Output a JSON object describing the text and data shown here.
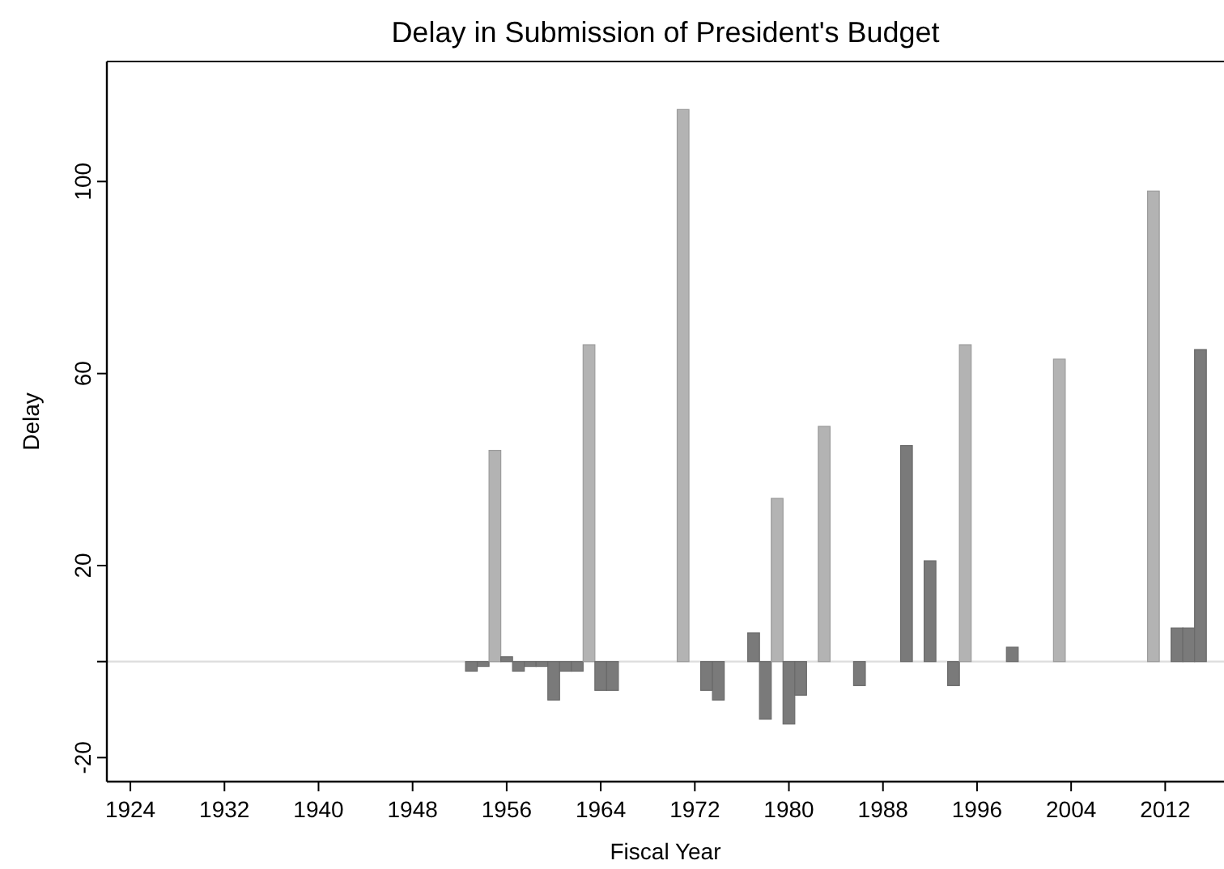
{
  "chart_data": {
    "type": "bar",
    "title": "Delay in Submission of President's Budget",
    "xlabel": "Fiscal Year",
    "ylabel": "Delay",
    "x": [
      1953,
      1954,
      1955,
      1956,
      1957,
      1958,
      1959,
      1960,
      1961,
      1962,
      1963,
      1964,
      1965,
      1971,
      1973,
      1974,
      1977,
      1978,
      1979,
      1980,
      1981,
      1983,
      1986,
      1990,
      1992,
      1994,
      1995,
      1999,
      2003,
      2011,
      2013,
      2014,
      2015
    ],
    "values": [
      -2,
      -1,
      44,
      1,
      -2,
      -1,
      -1,
      -8,
      -2,
      -2,
      66,
      -6,
      -6,
      115,
      -6,
      -8,
      6,
      -12,
      34,
      -13,
      -7,
      49,
      -5,
      45,
      21,
      -5,
      66,
      3,
      63,
      98,
      7,
      7,
      65
    ],
    "colors": [
      "#7a7a7a",
      "#7a7a7a",
      "#b3b3b3",
      "#7a7a7a",
      "#7a7a7a",
      "#7a7a7a",
      "#7a7a7a",
      "#7a7a7a",
      "#7a7a7a",
      "#7a7a7a",
      "#b3b3b3",
      "#7a7a7a",
      "#7a7a7a",
      "#b3b3b3",
      "#7a7a7a",
      "#7a7a7a",
      "#7a7a7a",
      "#7a7a7a",
      "#b3b3b3",
      "#7a7a7a",
      "#7a7a7a",
      "#b3b3b3",
      "#7a7a7a",
      "#7a7a7a",
      "#7a7a7a",
      "#7a7a7a",
      "#b3b3b3",
      "#7a7a7a",
      "#b3b3b3",
      "#b3b3b3",
      "#7a7a7a",
      "#7a7a7a",
      "#7a7a7a"
    ],
    "xlim": [
      1922,
      2017
    ],
    "xticks": [
      1924,
      1932,
      1940,
      1948,
      1956,
      1964,
      1972,
      1980,
      1988,
      1996,
      2004,
      2012
    ],
    "ylim": [
      -25,
      125
    ],
    "yticks": [
      -20,
      {
        "value": 0,
        "label": null
      },
      20,
      60,
      100
    ],
    "ref_lines": [
      {
        "axis": "y",
        "value": 0,
        "color": "#dddddd"
      }
    ],
    "grid": false
  }
}
